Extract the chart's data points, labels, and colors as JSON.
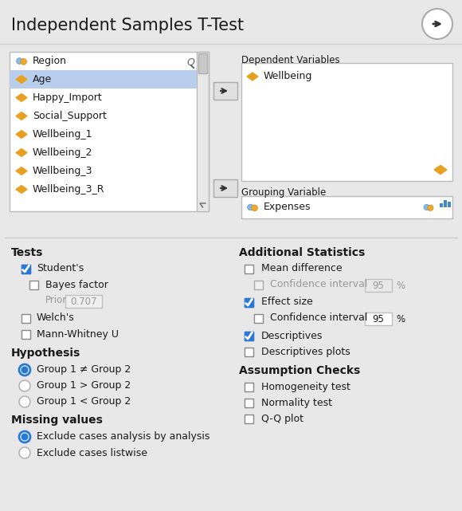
{
  "title": "Independent Samples T-Test",
  "bg_color": "#e8e8e8",
  "white": "#ffffff",
  "blue_selected": "#b8ceec",
  "border_color": "#c0c0c0",
  "text_dark": "#1a1a1a",
  "text_gray": "#999999",
  "blue_check": "#2878d8",
  "blue_radio": "#2878d8",
  "variable_list": [
    "Region",
    "Age",
    "Happy_Import",
    "Social_Support",
    "Wellbeing_1",
    "Wellbeing_2",
    "Wellbeing_3",
    "Wellbeing_3_R"
  ],
  "selected_var": "Age",
  "dep_var": "Wellbeing",
  "group_var": "Expenses",
  "tests_label": "Tests",
  "hypothesis_label": "Hypothesis",
  "hypothesis_items": [
    {
      "label": "Group 1 ≠ Group 2",
      "selected": true
    },
    {
      "label": "Group 1 > Group 2",
      "selected": false
    },
    {
      "label": "Group 1 < Group 2",
      "selected": false
    }
  ],
  "missing_label": "Missing values",
  "missing_items": [
    {
      "label": "Exclude cases analysis by analysis",
      "selected": true
    },
    {
      "label": "Exclude cases listwise",
      "selected": false
    }
  ],
  "addstat_label": "Additional Statistics",
  "assumption_label": "Assumption Checks",
  "assumption_items": [
    {
      "label": "Homogeneity test"
    },
    {
      "label": "Normality test"
    },
    {
      "label": "Q-Q plot"
    }
  ]
}
